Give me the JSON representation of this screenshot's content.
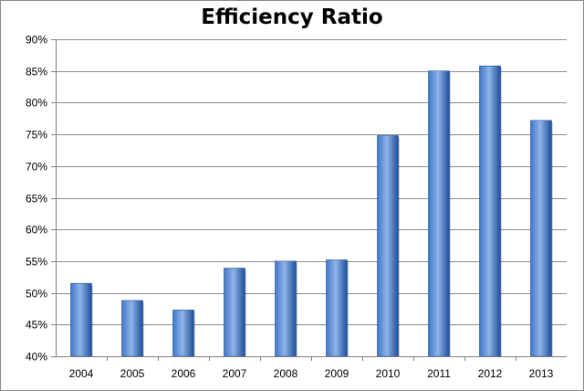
{
  "chart_data": {
    "type": "bar",
    "title": "Efficiency Ratio",
    "xlabel": "",
    "ylabel": "",
    "categories": [
      "2004",
      "2005",
      "2006",
      "2007",
      "2008",
      "2009",
      "2010",
      "2011",
      "2012",
      "2013"
    ],
    "series": [
      {
        "values": [
          51.5,
          48.8,
          47.3,
          53.9,
          55.0,
          55.2,
          74.8,
          85.0,
          85.8,
          77.2
        ]
      }
    ],
    "ylim": [
      40,
      90
    ],
    "yticks": [
      "40%",
      "45%",
      "50%",
      "55%",
      "60%",
      "65%",
      "70%",
      "75%",
      "80%",
      "85%",
      "90%"
    ],
    "grid": true,
    "legend": "none",
    "colors": {
      "bar_light": "#8fb4e8",
      "bar_mid": "#3f77c9",
      "bar_dark": "#1d4f9a",
      "gridline": "#8a8a8a",
      "axis": "#7f7f7f"
    }
  }
}
